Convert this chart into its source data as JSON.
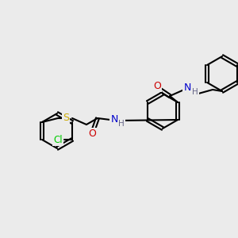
{
  "bg_color": "#ebebeb",
  "bond_color": "#000000",
  "bond_width": 1.5,
  "atom_colors": {
    "Cl": "#00cc00",
    "S": "#ccaa00",
    "O": "#cc0000",
    "N": "#0000cc",
    "H": "#666688",
    "C": "#000000"
  },
  "font_size": 8
}
